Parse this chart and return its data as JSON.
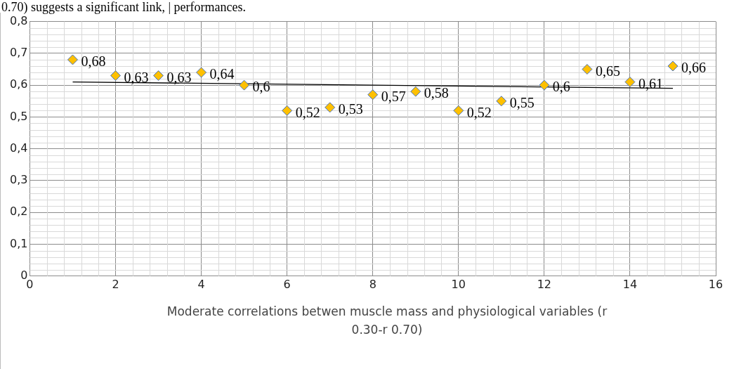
{
  "chart_data": {
    "type": "scatter",
    "xlabel": "Moderate correlations betwen muscle mass and physiological variables (r 0.30-r 0.70)",
    "annotations": [
      "0.70) suggests a significant link, | performances."
    ],
    "x": [
      1,
      2,
      3,
      4,
      5,
      6,
      7,
      8,
      9,
      10,
      11,
      12,
      13,
      14,
      15
    ],
    "series": [
      {
        "color": "#ffc000",
        "values": [
          0.68,
          0.63,
          0.63,
          0.64,
          0.6,
          0.52,
          0.53,
          0.57,
          0.58,
          0.52,
          0.55,
          0.6,
          0.65,
          0.61,
          0.66
        ],
        "value_labels": [
          "0,68",
          "0,63",
          "0,63",
          "0,64",
          "0,6",
          "0,52",
          "0,53",
          "0,57",
          "0,58",
          "0,52",
          "0,55",
          "0,6",
          "0,65",
          "0,61",
          "0,66"
        ],
        "marker": "diamond"
      },
      {
        "type": "line",
        "color": "#000000",
        "x": [
          1,
          15
        ],
        "values": [
          0.61,
          0.59
        ],
        "marker": "none"
      }
    ],
    "xlim": [
      0,
      16
    ],
    "xticks": [
      0,
      2,
      4,
      6,
      8,
      10,
      12,
      14,
      16
    ],
    "ylim": [
      0,
      0.8
    ],
    "yticks": [
      {
        "value": 0,
        "label": "0"
      },
      {
        "value": 0.1,
        "label": "0,1"
      },
      {
        "value": 0.2,
        "label": "0,2"
      },
      {
        "value": 0.3,
        "label": "0,3"
      },
      {
        "value": 0.4,
        "label": "0,4"
      },
      {
        "value": 0.5,
        "label": "0,5"
      },
      {
        "value": 0.6,
        "label": "0,6"
      },
      {
        "value": 0.7,
        "label": "0,7"
      },
      {
        "value": 0.8,
        "label": "0,8"
      }
    ],
    "grid": true,
    "legend": false
  }
}
